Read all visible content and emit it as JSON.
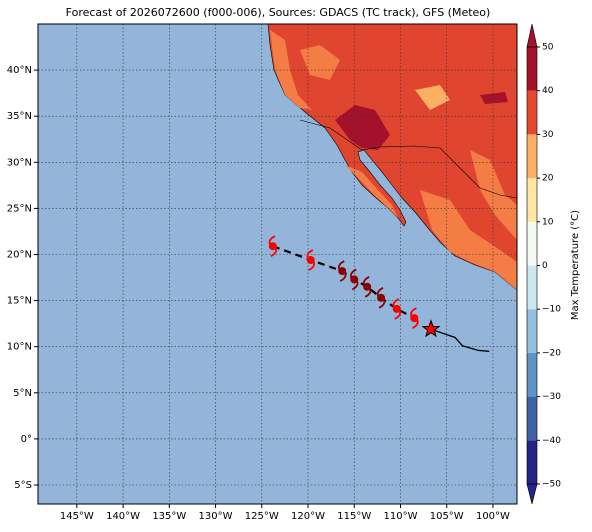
{
  "chart_data": {
    "type": "map",
    "title": "Forecast of 2026072600 (f000-006), Sources: GDACS (TC track), GFS (Meteo)",
    "xlim": [
      -149.2,
      -97.4
    ],
    "ylim": [
      -7.06,
      45
    ],
    "xticks": [
      {
        "value": -145,
        "label": "145°W"
      },
      {
        "value": -140,
        "label": "140°W"
      },
      {
        "value": -135,
        "label": "135°W"
      },
      {
        "value": -130,
        "label": "130°W"
      },
      {
        "value": -125,
        "label": "125°W"
      },
      {
        "value": -120,
        "label": "120°W"
      },
      {
        "value": -115,
        "label": "115°W"
      },
      {
        "value": -110,
        "label": "110°W"
      },
      {
        "value": -105,
        "label": "105°W"
      },
      {
        "value": -100,
        "label": "100°W"
      }
    ],
    "yticks": [
      {
        "value": -5,
        "label": "5°S"
      },
      {
        "value": 0,
        "label": "0°"
      },
      {
        "value": 5,
        "label": "5°N"
      },
      {
        "value": 10,
        "label": "10°N"
      },
      {
        "value": 15,
        "label": "15°N"
      },
      {
        "value": 20,
        "label": "20°N"
      },
      {
        "value": 25,
        "label": "25°N"
      },
      {
        "value": 30,
        "label": "30°N"
      },
      {
        "value": 35,
        "label": "35°N"
      },
      {
        "value": 40,
        "label": "40°N"
      }
    ],
    "grid": true,
    "ocean_color": "#92b5d9",
    "colorbar": {
      "label": "Max Temperature (°C)",
      "lim": [
        -50,
        50
      ],
      "ticks": [
        {
          "value": -50,
          "label": "−50"
        },
        {
          "value": -40,
          "label": "−40"
        },
        {
          "value": -30,
          "label": "−30"
        },
        {
          "value": -20,
          "label": "−20"
        },
        {
          "value": -10,
          "label": "−10"
        },
        0,
        10,
        20,
        30,
        40,
        50
      ],
      "colors": [
        "#23238a",
        "#3d62a9",
        "#5f93c6",
        "#93c0dc",
        "#cbe7f0",
        "#f4f9f1",
        "#fde7a2",
        "#fbb063",
        "#e5482f",
        "#a4112a"
      ]
    },
    "forecast_track": {
      "lon": [
        -123.8,
        -119.7,
        -116.3,
        -115.0,
        -113.6,
        -112.1,
        -110.4,
        -108.5
      ],
      "lat": [
        20.9,
        19.4,
        18.2,
        17.3,
        16.5,
        15.3,
        14.1,
        13.1
      ],
      "colors": [
        "#ff0000",
        "#ff0000",
        "#8b0000",
        "#8b0000",
        "#8b0000",
        "#8b0000",
        "#ff0000",
        "#ff0000"
      ]
    },
    "past_track": {
      "lon": [
        -106.7,
        -104.1,
        -103.3,
        -101.6,
        -100.4
      ],
      "lat": [
        11.9,
        11.0,
        10.1,
        9.6,
        9.5
      ],
      "color": "#000000",
      "marker_color": "#ff0000"
    }
  }
}
